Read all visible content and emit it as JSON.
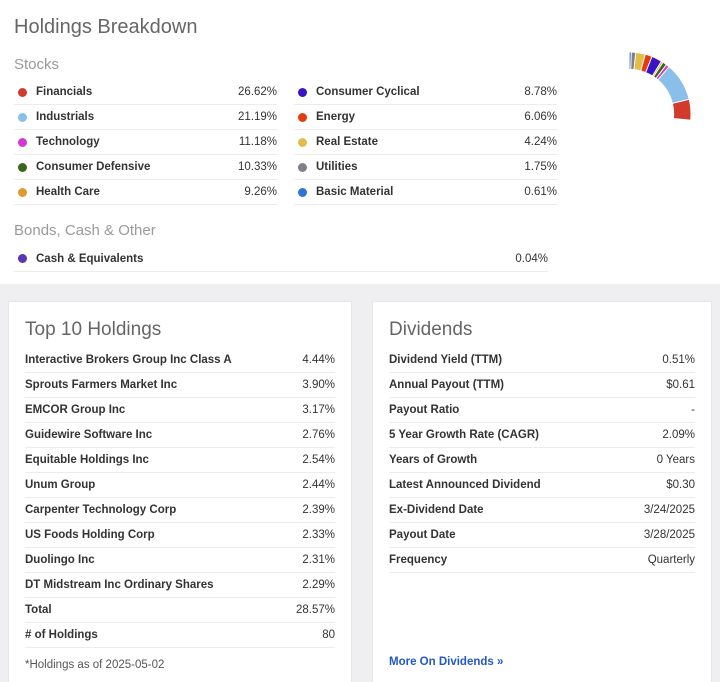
{
  "page": {
    "title": "Holdings Breakdown"
  },
  "stocks": {
    "heading": "Stocks",
    "items": [
      {
        "label": "Financials",
        "value": "26.62%",
        "color": "#d13b2b"
      },
      {
        "label": "Industrials",
        "value": "21.19%",
        "color": "#8abfe9"
      },
      {
        "label": "Technology",
        "value": "11.18%",
        "color": "#d13bd1"
      },
      {
        "label": "Consumer Defensive",
        "value": "10.33%",
        "color": "#3c661c"
      },
      {
        "label": "Health Care",
        "value": "9.26%",
        "color": "#de9b30"
      },
      {
        "label": "Consumer Cyclical",
        "value": "8.78%",
        "color": "#3a13c4"
      },
      {
        "label": "Energy",
        "value": "6.06%",
        "color": "#e23c10"
      },
      {
        "label": "Real Estate",
        "value": "4.24%",
        "color": "#e2be49"
      },
      {
        "label": "Utilities",
        "value": "1.75%",
        "color": "#80808a"
      },
      {
        "label": "Basic Material",
        "value": "0.61%",
        "color": "#2e76d1"
      }
    ]
  },
  "bonds": {
    "heading": "Bonds, Cash & Other",
    "items": [
      {
        "label": "Cash & Equivalents",
        "value": "0.04%",
        "color": "#5c35b5"
      }
    ]
  },
  "chart_data": {
    "type": "pie",
    "subtype": "donut",
    "title": "Holdings Breakdown",
    "labels": [
      "Financials",
      "Industrials",
      "Technology",
      "Consumer Defensive",
      "Health Care",
      "Consumer Cyclical",
      "Energy",
      "Real Estate",
      "Utilities",
      "Basic Material",
      "Cash & Equivalents"
    ],
    "values": [
      26.62,
      21.19,
      11.18,
      10.33,
      9.26,
      8.78,
      6.06,
      4.24,
      1.75,
      0.61,
      0.04
    ],
    "colors": [
      "#d13b2b",
      "#8abfe9",
      "#d13bd1",
      "#3c661c",
      "#de9b30",
      "#3a13c4",
      "#e23c10",
      "#e2be49",
      "#80808a",
      "#2e76d1",
      "#5c35b5"
    ],
    "start_angle_deg": -90,
    "direction": "clockwise",
    "inner_radius_ratio": 0.72,
    "legend_position": "left"
  },
  "top_holdings": {
    "title": "Top 10 Holdings",
    "rows": [
      {
        "label": "Interactive Brokers Group Inc Class A",
        "value": "4.44%"
      },
      {
        "label": "Sprouts Farmers Market Inc",
        "value": "3.90%"
      },
      {
        "label": "EMCOR Group Inc",
        "value": "3.17%"
      },
      {
        "label": "Guidewire Software Inc",
        "value": "2.76%"
      },
      {
        "label": "Equitable Holdings Inc",
        "value": "2.54%"
      },
      {
        "label": "Unum Group",
        "value": "2.44%"
      },
      {
        "label": "Carpenter Technology Corp",
        "value": "2.39%"
      },
      {
        "label": "US Foods Holding Corp",
        "value": "2.33%"
      },
      {
        "label": "Duolingo Inc",
        "value": "2.31%"
      },
      {
        "label": "DT Midstream Inc Ordinary Shares",
        "value": "2.29%"
      },
      {
        "label": "Total",
        "value": "28.57%"
      },
      {
        "label": "# of Holdings",
        "value": "80"
      }
    ],
    "footnote": "*Holdings as of 2025-05-02"
  },
  "dividends": {
    "title": "Dividends",
    "rows": [
      {
        "label": "Dividend Yield (TTM)",
        "value": "0.51%"
      },
      {
        "label": "Annual Payout (TTM)",
        "value": "$0.61"
      },
      {
        "label": "Payout Ratio",
        "value": "-"
      },
      {
        "label": "5 Year Growth Rate (CAGR)",
        "value": "2.09%"
      },
      {
        "label": "Years of Growth",
        "value": "0 Years"
      },
      {
        "label": "Latest Announced Dividend",
        "value": "$0.30"
      },
      {
        "label": "Ex-Dividend Date",
        "value": "3/24/2025"
      },
      {
        "label": "Payout Date",
        "value": "3/28/2025"
      },
      {
        "label": "Frequency",
        "value": "Quarterly"
      }
    ],
    "link_label": "More On Dividends »"
  }
}
